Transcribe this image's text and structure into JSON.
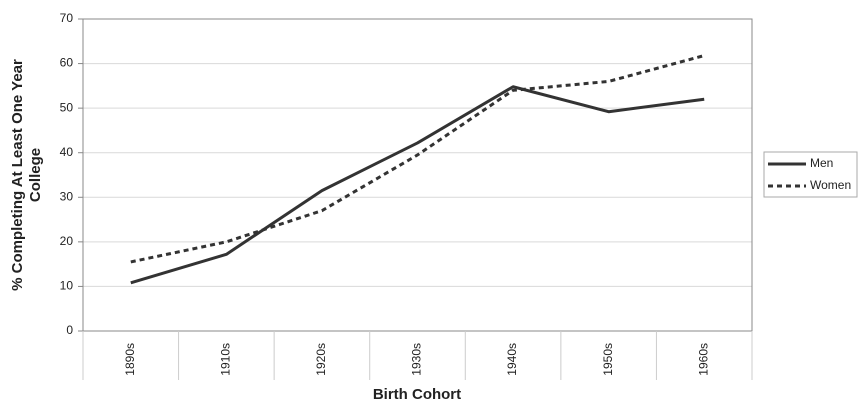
{
  "chart_data": {
    "type": "line",
    "xlabel": "Birth Cohort",
    "ylabel": [
      "% Completing At Least One Year",
      "College"
    ],
    "categories": [
      "1890s",
      "1910s",
      "1920s",
      "1930s",
      "1940s",
      "1950s",
      "1960s"
    ],
    "series": [
      {
        "name": "Men",
        "color": "#333333",
        "dash": "solid",
        "values": [
          10.8,
          17.2,
          31.5,
          42.2,
          54.8,
          49.2,
          52.0
        ]
      },
      {
        "name": "Women",
        "color": "#333333",
        "dash": "dashed",
        "values": [
          15.5,
          20.0,
          27.0,
          39.5,
          54.0,
          56.0,
          61.8
        ]
      }
    ],
    "ylim": [
      0,
      70
    ],
    "yticks": [
      0,
      10,
      20,
      30,
      40,
      50,
      60,
      70
    ],
    "grid": true,
    "legend": "right"
  }
}
